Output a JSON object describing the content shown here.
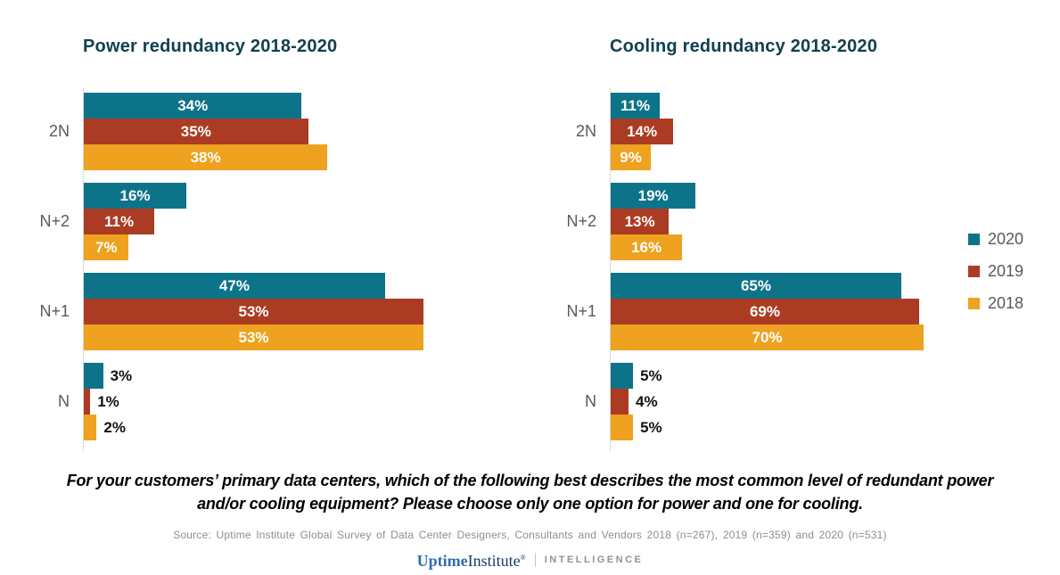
{
  "chart_data": [
    {
      "type": "bar",
      "orientation": "horizontal",
      "title": "Power redundancy 2018-2020",
      "categories": [
        "2N",
        "N+2",
        "N+1",
        "N"
      ],
      "series": [
        {
          "name": "2020",
          "color": "#0D7389",
          "values": [
            34,
            16,
            47,
            3
          ]
        },
        {
          "name": "2019",
          "color": "#AB3C23",
          "values": [
            35,
            11,
            53,
            1
          ]
        },
        {
          "name": "2018",
          "color": "#EEA21F",
          "values": [
            38,
            7,
            53,
            2
          ]
        }
      ],
      "value_suffix": "%",
      "xlabel": "",
      "ylabel": "",
      "xmax": 53,
      "grid": false,
      "label_inside_min": 7
    },
    {
      "type": "bar",
      "orientation": "horizontal",
      "title": "Cooling redundancy 2018-2020",
      "categories": [
        "2N",
        "N+2",
        "N+1",
        "N"
      ],
      "series": [
        {
          "name": "2020",
          "color": "#0D7389",
          "values": [
            11,
            19,
            65,
            5
          ]
        },
        {
          "name": "2019",
          "color": "#AB3C23",
          "values": [
            14,
            13,
            69,
            4
          ]
        },
        {
          "name": "2018",
          "color": "#EEA21F",
          "values": [
            9,
            16,
            70,
            5
          ]
        }
      ],
      "value_suffix": "%",
      "xlabel": "",
      "ylabel": "",
      "xmax": 70,
      "grid": false,
      "label_inside_min": 7
    }
  ],
  "legend": {
    "position": "right",
    "items": [
      {
        "label": "2020",
        "color": "#0D7389"
      },
      {
        "label": "2019",
        "color": "#AB3C23"
      },
      {
        "label": "2018",
        "color": "#EEA21F"
      }
    ]
  },
  "footer": {
    "question": "For your customers’ primary data centers, which of the following best describes the most common level of redundant power and/or cooling equipment? Please choose only one option for power and one for cooling.",
    "source": "Source: Uptime Institute Global Survey of Data Center Designers, Consultants and Vendors 2018 (n=267), 2019 (n=359) and 2020 (n=531)",
    "logo": {
      "uptime": "Uptime",
      "institute": "Institute",
      "registered": "®",
      "intelligence": "INTELLIGENCE"
    }
  },
  "colors": {
    "accent_teal": "#0D7389",
    "accent_red": "#AB3C23",
    "accent_orange": "#EEA21F",
    "title": "#12404F",
    "category_label": "#5A5A5A",
    "axis_line": "#D9D9D9"
  }
}
